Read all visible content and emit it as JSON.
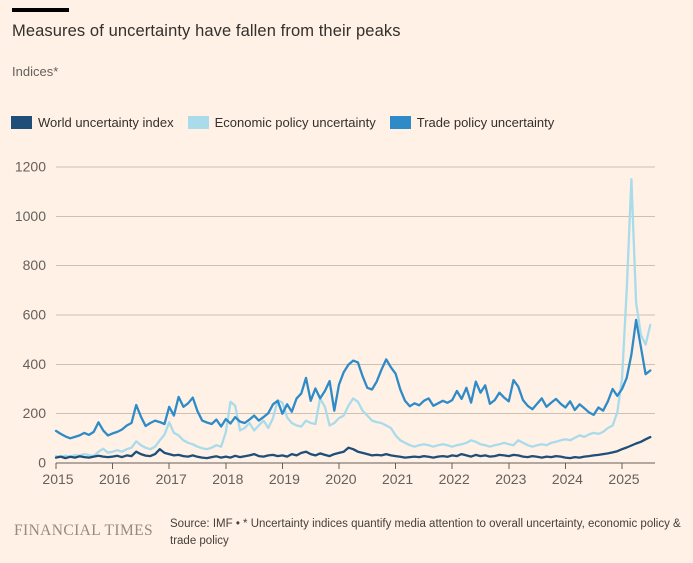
{
  "header": {
    "title": "Measures of uncertainty have fallen from their peaks",
    "subtitle": "Indices*"
  },
  "footer": {
    "brand": "FINANCIAL TIMES",
    "source": "Source: IMF • * Uncertainty indices quantify media attention to overall uncertainty, economic policy & trade policy"
  },
  "colors": {
    "background": "#FFF1E5",
    "title_text": "#33302E",
    "muted_text": "#66605C",
    "gridline": "#CDC1B1",
    "axis_line": "#66605C"
  },
  "chart_data": {
    "type": "line",
    "title": "Measures of uncertainty have fallen from their peaks",
    "ylabel": "Indices*",
    "xlabel": "",
    "ylim": [
      0,
      1200
    ],
    "ytick_step": 200,
    "yticks": [
      0,
      200,
      400,
      600,
      800,
      1000,
      1200
    ],
    "xticks": [
      2015,
      2016,
      2017,
      2018,
      2019,
      2020,
      2021,
      2022,
      2023,
      2024,
      2025
    ],
    "x_start_year": 2015,
    "points_per_year": 12,
    "grid": "horizontal",
    "legend_position": "top",
    "series": [
      {
        "name": "World uncertainty index",
        "color": "#1F4E79",
        "values": [
          22,
          26,
          20,
          25,
          22,
          27,
          24,
          22,
          26,
          29,
          26,
          24,
          26,
          29,
          24,
          31,
          28,
          46,
          36,
          30,
          28,
          36,
          56,
          41,
          36,
          31,
          33,
          28,
          26,
          31,
          25,
          22,
          20,
          24,
          27,
          22,
          26,
          22,
          29,
          24,
          27,
          31,
          36,
          28,
          26,
          31,
          33,
          28,
          31,
          26,
          36,
          31,
          41,
          46,
          36,
          31,
          39,
          33,
          28,
          36,
          41,
          46,
          62,
          56,
          46,
          41,
          36,
          31,
          33,
          31,
          36,
          31,
          28,
          25,
          22,
          24,
          26,
          24,
          28,
          25,
          22,
          26,
          28,
          25,
          31,
          28,
          36,
          31,
          26,
          33,
          28,
          31,
          26,
          28,
          33,
          31,
          28,
          33,
          31,
          26,
          24,
          28,
          25,
          22,
          26,
          24,
          28,
          26,
          22,
          20,
          24,
          22,
          26,
          28,
          31,
          33,
          36,
          39,
          43,
          48,
          56,
          63,
          71,
          79,
          86,
          96,
          105
        ]
      },
      {
        "name": "Economic policy uncertainty",
        "color": "#A9DBEB",
        "values": [
          28,
          25,
          30,
          26,
          32,
          30,
          36,
          32,
          28,
          46,
          58,
          42,
          46,
          52,
          46,
          56,
          62,
          88,
          72,
          62,
          56,
          66,
          92,
          115,
          165,
          122,
          112,
          92,
          82,
          76,
          66,
          60,
          56,
          62,
          72,
          66,
          125,
          248,
          232,
          132,
          142,
          162,
          132,
          152,
          172,
          142,
          182,
          255,
          245,
          185,
          162,
          152,
          148,
          172,
          162,
          158,
          262,
          228,
          152,
          162,
          182,
          192,
          232,
          262,
          248,
          212,
          192,
          172,
          166,
          162,
          152,
          142,
          112,
          92,
          82,
          72,
          66,
          72,
          76,
          72,
          66,
          72,
          76,
          72,
          66,
          72,
          76,
          82,
          92,
          86,
          76,
          72,
          66,
          72,
          76,
          82,
          76,
          72,
          92,
          82,
          72,
          66,
          72,
          76,
          72,
          82,
          86,
          92,
          96,
          92,
          102,
          112,
          106,
          116,
          122,
          118,
          126,
          142,
          152,
          205,
          340,
          700,
          1150,
          650,
          520,
          480,
          560
        ]
      },
      {
        "name": "Trade policy uncertainty",
        "color": "#2E8BC8",
        "values": [
          130,
          118,
          108,
          100,
          106,
          112,
          122,
          114,
          126,
          165,
          132,
          112,
          120,
          126,
          136,
          152,
          162,
          235,
          188,
          150,
          162,
          172,
          166,
          158,
          228,
          192,
          268,
          228,
          242,
          265,
          210,
          172,
          164,
          158,
          176,
          148,
          178,
          160,
          186,
          168,
          162,
          176,
          192,
          172,
          186,
          202,
          238,
          252,
          200,
          238,
          208,
          262,
          282,
          345,
          252,
          302,
          262,
          292,
          332,
          212,
          318,
          368,
          398,
          415,
          408,
          352,
          305,
          298,
          330,
          378,
          420,
          388,
          362,
          298,
          252,
          230,
          242,
          234,
          252,
          262,
          232,
          242,
          252,
          244,
          255,
          292,
          260,
          305,
          245,
          330,
          285,
          315,
          240,
          255,
          285,
          265,
          250,
          336,
          310,
          255,
          232,
          218,
          240,
          262,
          228,
          245,
          260,
          240,
          225,
          250,
          215,
          238,
          222,
          205,
          195,
          225,
          212,
          250,
          300,
          272,
          300,
          345,
          440,
          580,
          470,
          360,
          375
        ]
      }
    ]
  }
}
